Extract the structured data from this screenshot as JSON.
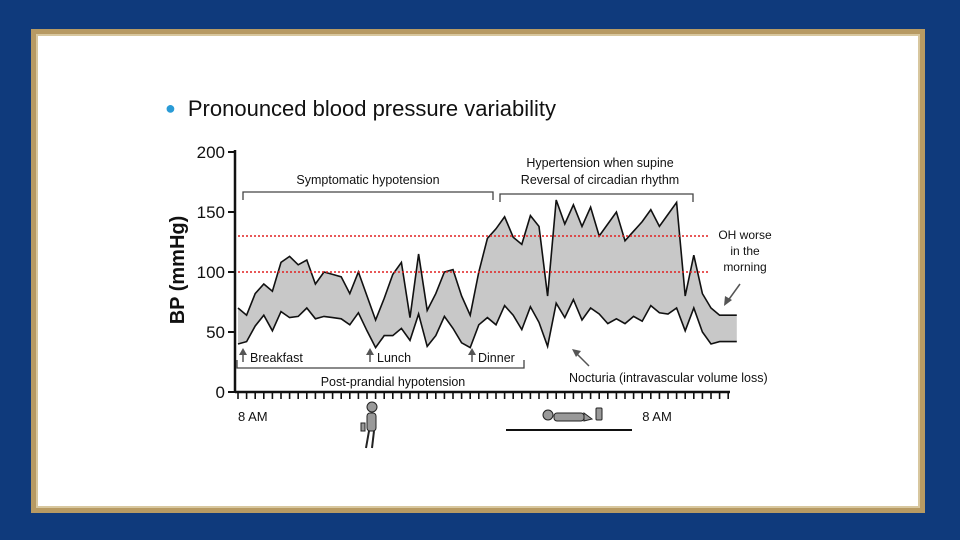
{
  "slide": {
    "bullet": "Pronounced blood pressure variability"
  },
  "colors": {
    "background": "#0f3a7c",
    "frame": "#b79a63",
    "bullet": "#2a9bd6",
    "band_fill": "#c8c8c8",
    "threshold": "#e02020"
  },
  "chart_data": {
    "type": "area",
    "ylabel": "BP (mmHg)",
    "ylim": [
      0,
      200
    ],
    "yticks": [
      0,
      50,
      100,
      150,
      200
    ],
    "x_tick_labels": [
      {
        "label": "8 AM",
        "x": 0
      },
      {
        "label": "8 AM",
        "x": 94
      }
    ],
    "threshold_lines": [
      100,
      130
    ],
    "x": [
      0,
      2,
      4,
      6,
      8,
      10,
      12,
      14,
      16,
      18,
      20,
      22,
      24,
      26,
      28,
      30,
      32,
      34,
      36,
      38,
      40,
      42,
      44,
      46,
      48,
      50,
      52,
      54,
      56,
      58,
      60,
      62,
      64,
      66,
      68,
      70,
      72,
      74,
      76,
      78,
      80,
      82,
      84,
      86,
      88,
      90,
      92,
      94,
      96,
      98,
      100,
      102,
      104,
      106,
      108,
      110,
      112,
      114,
      116
    ],
    "upper": [
      70,
      64,
      82,
      90,
      84,
      108,
      113,
      106,
      110,
      90,
      100,
      98,
      96,
      82,
      100,
      80,
      60,
      78,
      98,
      108,
      62,
      115,
      68,
      82,
      100,
      102,
      80,
      64,
      100,
      128,
      136,
      146,
      129,
      123,
      147,
      138,
      80,
      160,
      140,
      156,
      138,
      154,
      130,
      140,
      150,
      126,
      134,
      142,
      152,
      138,
      148,
      158,
      80,
      114,
      82,
      70,
      64,
      64,
      64
    ],
    "lower": [
      40,
      42,
      55,
      64,
      51,
      67,
      62,
      63,
      70,
      61,
      63,
      62,
      61,
      56,
      66,
      51,
      37,
      47,
      47,
      53,
      43,
      65,
      38,
      47,
      63,
      53,
      41,
      37,
      56,
      62,
      56,
      72,
      64,
      52,
      71,
      58,
      38,
      74,
      62,
      77,
      60,
      70,
      65,
      57,
      61,
      57,
      63,
      59,
      72,
      66,
      65,
      70,
      51,
      70,
      50,
      40,
      42,
      42,
      42
    ],
    "annotations": {
      "symptomatic": "Symptomatic hypotension",
      "hypertension_supine": "Hypertension when supine",
      "reversal": "Reversal of circadian rhythm",
      "oh_worse_1": "OH worse",
      "oh_worse_2": "in the",
      "oh_worse_3": "morning",
      "breakfast": "Breakfast",
      "lunch": "Lunch",
      "dinner": "Dinner",
      "postprandial": "Post-prandial hypotension",
      "nocturia": "Nocturia (intravascular volume loss)"
    }
  }
}
